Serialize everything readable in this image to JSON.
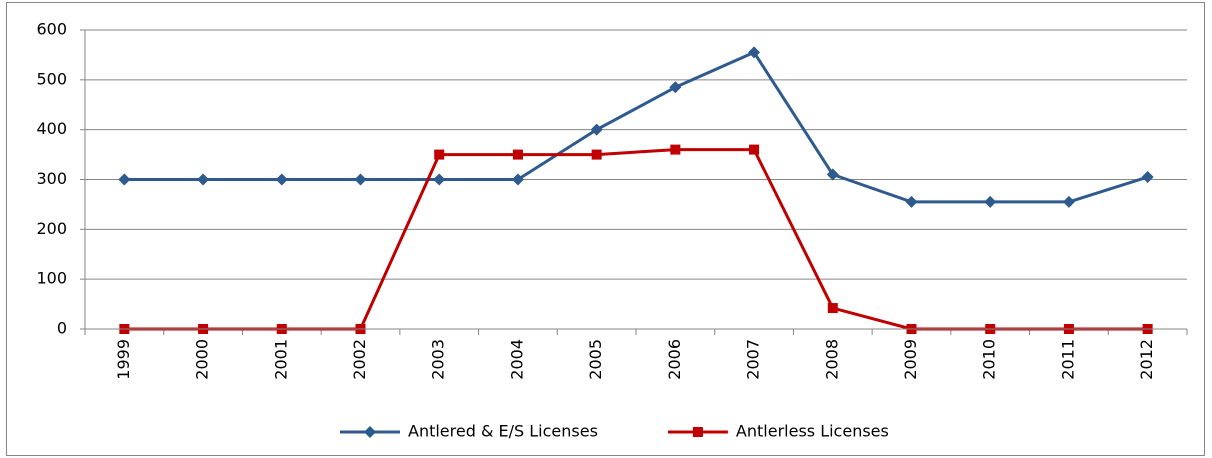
{
  "chart_data": {
    "type": "line",
    "categories": [
      "1999",
      "2000",
      "2001",
      "2002",
      "2003",
      "2004",
      "2005",
      "2006",
      "2007",
      "2008",
      "2009",
      "2010",
      "2011",
      "2012"
    ],
    "series": [
      {
        "name": "Antlered & E/S Licenses",
        "color": "#2e5a8e",
        "marker": "diamond",
        "values": [
          300,
          300,
          300,
          300,
          300,
          300,
          400,
          485,
          555,
          310,
          255,
          255,
          255,
          305
        ]
      },
      {
        "name": "Antlerless Licenses",
        "color": "#c00000",
        "marker": "square",
        "values": [
          0,
          0,
          0,
          0,
          350,
          350,
          350,
          360,
          360,
          42,
          0,
          0,
          0,
          0
        ]
      }
    ],
    "ylim": [
      0,
      600
    ],
    "yticks": [
      0,
      100,
      200,
      300,
      400,
      500,
      600
    ],
    "grid": true,
    "legend": "bottom"
  }
}
